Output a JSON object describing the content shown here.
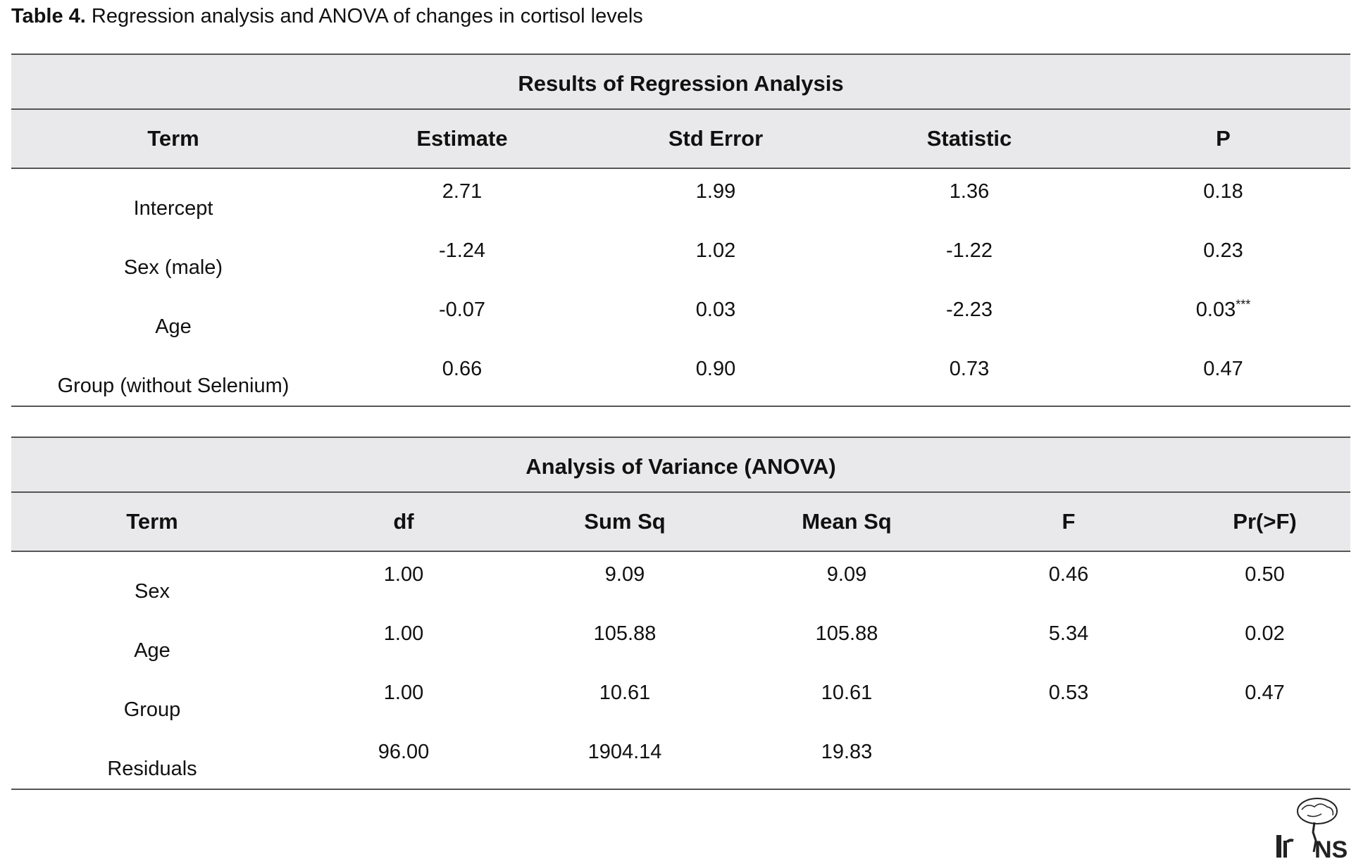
{
  "caption": {
    "label": "Table 4.",
    "text": " Regression analysis and ANOVA of changes in cortisol levels"
  },
  "regression": {
    "title": "Results of Regression Analysis",
    "headers": [
      "Term",
      "Estimate",
      "Std Error",
      "Statistic",
      "P"
    ],
    "rows": [
      {
        "term": "Intercept",
        "estimate": "2.71",
        "std_error": "1.99",
        "statistic": "1.36",
        "p": "0.18",
        "sig": ""
      },
      {
        "term": "Sex (male)",
        "estimate": "-1.24",
        "std_error": "1.02",
        "statistic": "-1.22",
        "p": "0.23",
        "sig": ""
      },
      {
        "term": "Age",
        "estimate": "-0.07",
        "std_error": "0.03",
        "statistic": "-2.23",
        "p": "0.03",
        "sig": "***"
      },
      {
        "term": "Group (without Selenium)",
        "estimate": "0.66",
        "std_error": "0.90",
        "statistic": "0.73",
        "p": "0.47",
        "sig": ""
      }
    ]
  },
  "anova": {
    "title": "Analysis of Variance (ANOVA)",
    "headers": [
      "Term",
      "df",
      "Sum Sq",
      "Mean Sq",
      "F",
      "Pr(>F)"
    ],
    "rows": [
      {
        "term": "Sex",
        "df": "1.00",
        "sum_sq": "9.09",
        "mean_sq": "9.09",
        "f": "0.46",
        "pr": "0.50"
      },
      {
        "term": "Age",
        "df": "1.00",
        "sum_sq": "105.88",
        "mean_sq": "105.88",
        "f": "5.34",
        "pr": "0.02"
      },
      {
        "term": "Group",
        "df": "1.00",
        "sum_sq": "10.61",
        "mean_sq": "10.61",
        "f": "0.53",
        "pr": "0.47"
      },
      {
        "term": "Residuals",
        "df": "96.00",
        "sum_sq": "1904.14",
        "mean_sq": "19.83",
        "f": "",
        "pr": ""
      }
    ]
  },
  "logo": {
    "text": "IrJNS"
  }
}
